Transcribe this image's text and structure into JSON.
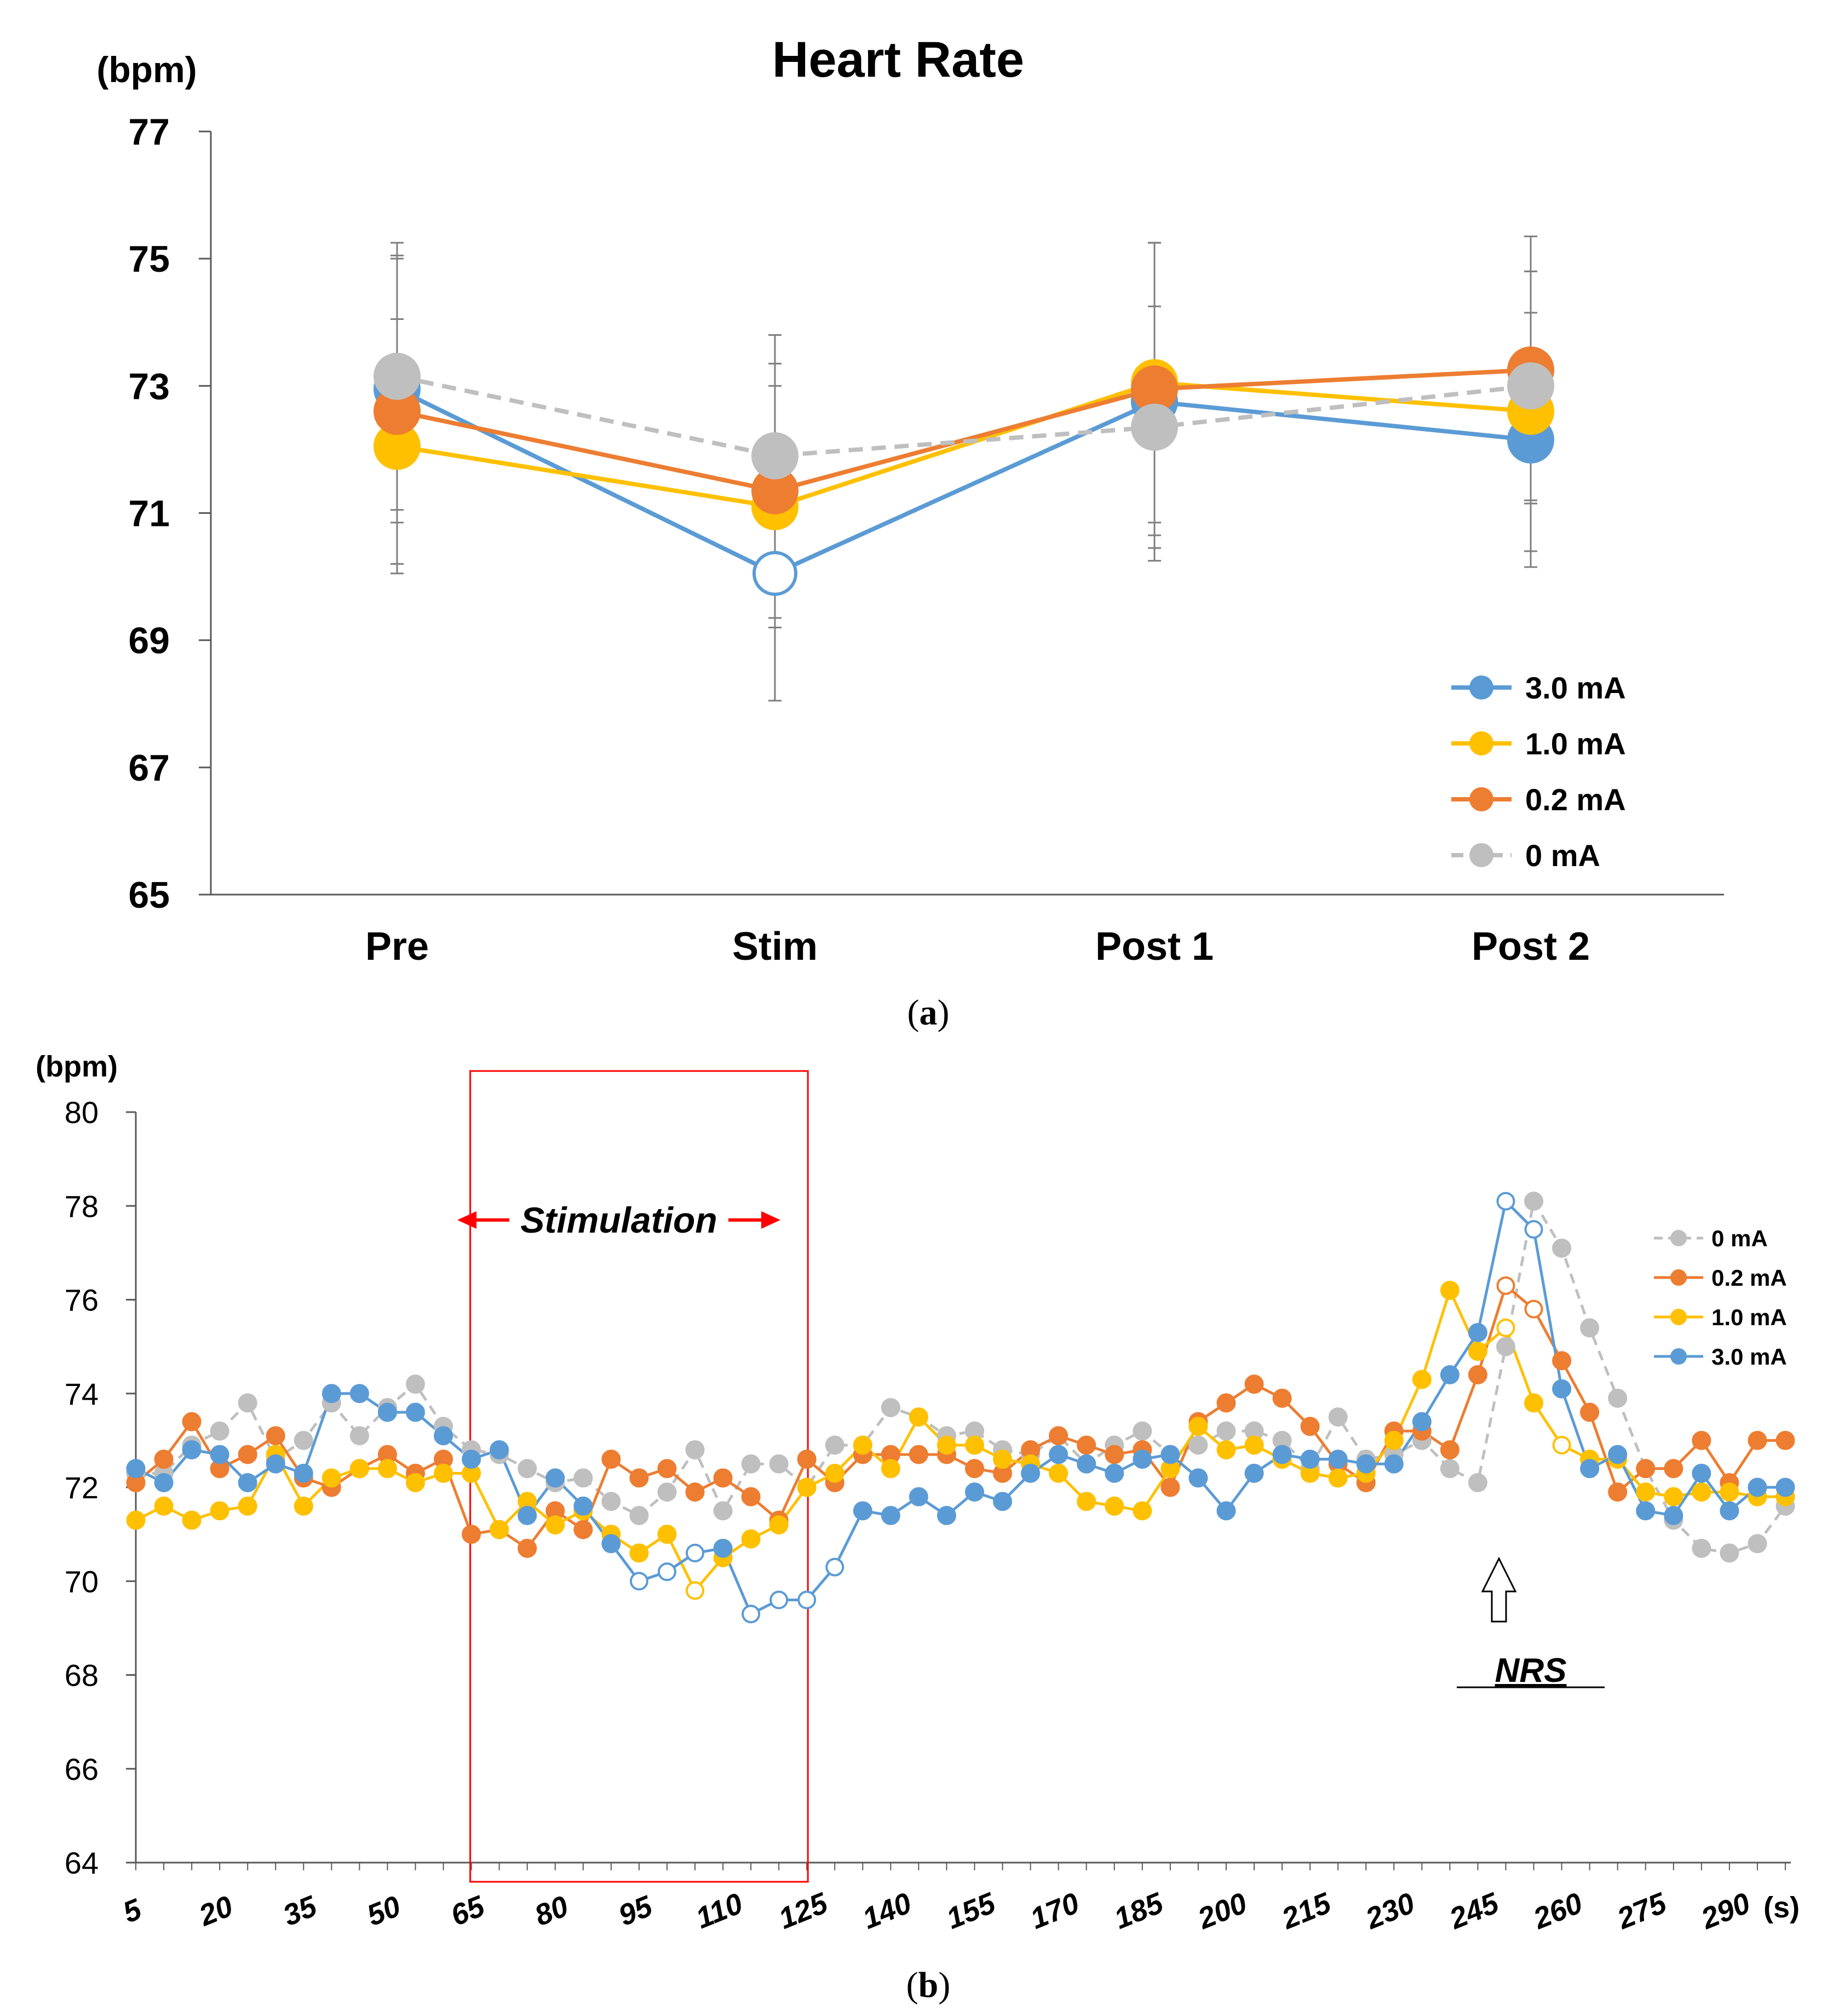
{
  "chart_data": [
    {
      "type": "line",
      "title": "Heart Rate",
      "ylabel": "(bpm)",
      "xlabel": "",
      "panel_label": "a",
      "categories": [
        "Pre",
        "Stim",
        "Post 1",
        "Post 2"
      ],
      "ylim": [
        65,
        77
      ],
      "yticks": [
        65,
        67,
        69,
        71,
        73,
        75,
        77
      ],
      "grid": false,
      "legend_position": "bottom-right",
      "series": [
        {
          "name": "3.0 mA",
          "color": "#5B9BD5",
          "dash": false,
          "values": [
            72.95,
            70.05,
            72.75,
            72.15
          ],
          "hollow": [
            false,
            true,
            false,
            false
          ],
          "error": [
            2.1,
            2.0,
            2.5,
            2.0
          ]
        },
        {
          "name": "1.0 mA",
          "color": "#FFC000",
          "dash": false,
          "values": [
            72.05,
            71.1,
            73.05,
            72.6
          ],
          "hollow": [
            false,
            false,
            false,
            false
          ],
          "error": [
            2.0,
            1.9,
            2.2,
            2.2
          ]
        },
        {
          "name": "0.2 mA",
          "color": "#ED7D31",
          "dash": false,
          "values": [
            72.6,
            71.35,
            72.95,
            73.25
          ],
          "hollow": [
            false,
            false,
            false,
            false
          ],
          "error": [
            2.4,
            2.0,
            2.3,
            2.1
          ]
        },
        {
          "name": "0 mA",
          "color": "#BFBFBF",
          "dash": true,
          "values": [
            73.15,
            71.9,
            72.35,
            73.0
          ],
          "hollow": [
            false,
            false,
            false,
            false
          ],
          "error": [
            2.1,
            1.9,
            1.9,
            1.8
          ]
        }
      ]
    },
    {
      "type": "line",
      "title": "",
      "ylabel": "(bpm)",
      "xlabel": "(s)",
      "panel_label": "b",
      "x": [
        5,
        10,
        15,
        20,
        25,
        30,
        35,
        40,
        45,
        50,
        55,
        60,
        65,
        70,
        75,
        80,
        85,
        90,
        95,
        100,
        105,
        110,
        115,
        120,
        125,
        130,
        135,
        140,
        145,
        150,
        155,
        160,
        165,
        170,
        175,
        180,
        185,
        190,
        195,
        200,
        205,
        210,
        215,
        220,
        225,
        230,
        235,
        240,
        245,
        250,
        255,
        260,
        265,
        270,
        275,
        280,
        285,
        290,
        295,
        300
      ],
      "xticks": [
        5,
        20,
        35,
        50,
        65,
        80,
        95,
        110,
        125,
        140,
        155,
        170,
        185,
        200,
        215,
        230,
        245,
        260,
        275,
        290
      ],
      "xlim": [
        5,
        300
      ],
      "ylim": [
        64,
        80
      ],
      "yticks": [
        64,
        66,
        68,
        70,
        72,
        74,
        76,
        78,
        80
      ],
      "grid": false,
      "legend_position": "right",
      "stimulation_window": {
        "label": "Stimulation",
        "start": 65,
        "end": 125
      },
      "annotation": {
        "label": "NRS",
        "x": 255
      },
      "series": [
        {
          "name": "0 mA",
          "color": "#BFBFBF",
          "dash": true,
          "values": [
            72.3,
            72.3,
            72.9,
            73.2,
            73.8,
            72.6,
            73.0,
            73.8,
            73.1,
            73.7,
            74.2,
            73.3,
            72.8,
            72.7,
            72.4,
            72.1,
            72.2,
            71.7,
            71.4,
            71.9,
            72.8,
            71.5,
            72.5,
            72.5,
            72.0,
            72.9,
            72.9,
            73.7,
            73.5,
            73.1,
            73.2,
            72.8,
            72.7,
            73.1,
            72.5,
            72.9,
            73.2,
            72.7,
            72.9,
            73.2,
            73.2,
            73.0,
            72.4,
            73.5,
            72.6,
            72.7,
            73.0,
            72.4,
            72.1,
            75.0,
            78.1,
            77.1,
            75.4,
            73.9,
            72.4,
            71.3,
            70.7,
            70.6,
            70.8,
            71.6
          ],
          "hollow": [
            false,
            false,
            false,
            false,
            false,
            false,
            false,
            false,
            false,
            false,
            false,
            false,
            false,
            false,
            false,
            false,
            false,
            false,
            false,
            false,
            false,
            false,
            false,
            false,
            false,
            false,
            false,
            false,
            false,
            false,
            false,
            false,
            false,
            false,
            false,
            false,
            false,
            false,
            false,
            false,
            false,
            false,
            false,
            false,
            false,
            false,
            false,
            false,
            false,
            false,
            false,
            false,
            false,
            false,
            false,
            false,
            false,
            false,
            false,
            false
          ]
        },
        {
          "name": "0.2 mA",
          "color": "#ED7D31",
          "dash": false,
          "values": [
            72.1,
            72.6,
            73.4,
            72.4,
            72.7,
            73.1,
            72.2,
            72.0,
            72.4,
            72.7,
            72.3,
            72.6,
            71.0,
            71.1,
            70.7,
            71.5,
            71.1,
            72.6,
            72.2,
            72.4,
            71.9,
            72.2,
            71.8,
            71.3,
            72.6,
            72.1,
            72.7,
            72.7,
            72.7,
            72.7,
            72.4,
            72.3,
            72.8,
            73.1,
            72.9,
            72.7,
            72.8,
            72.0,
            73.4,
            73.8,
            74.2,
            73.9,
            73.3,
            72.5,
            72.1,
            73.2,
            73.2,
            72.8,
            74.4,
            76.3,
            75.8,
            74.7,
            73.6,
            71.9,
            72.4,
            72.4,
            73.0,
            72.1,
            73.0,
            73.0
          ],
          "hollow": [
            false,
            false,
            false,
            false,
            false,
            false,
            false,
            false,
            false,
            false,
            false,
            false,
            false,
            false,
            false,
            false,
            false,
            false,
            false,
            false,
            false,
            false,
            false,
            false,
            false,
            false,
            false,
            false,
            false,
            false,
            false,
            false,
            false,
            false,
            false,
            false,
            false,
            false,
            false,
            false,
            false,
            false,
            false,
            false,
            false,
            false,
            false,
            false,
            false,
            true,
            true,
            false,
            false,
            false,
            false,
            false,
            false,
            false,
            false,
            false
          ]
        },
        {
          "name": "1.0 mA",
          "color": "#FFC000",
          "dash": false,
          "values": [
            71.3,
            71.6,
            71.3,
            71.5,
            71.6,
            72.7,
            71.6,
            72.2,
            72.4,
            72.4,
            72.1,
            72.3,
            72.3,
            71.1,
            71.7,
            71.2,
            71.5,
            71.0,
            70.6,
            71.0,
            69.8,
            70.5,
            70.9,
            71.2,
            72.0,
            72.3,
            72.9,
            72.4,
            73.5,
            72.9,
            72.9,
            72.6,
            72.5,
            72.3,
            71.7,
            71.6,
            71.5,
            72.4,
            73.3,
            72.8,
            72.9,
            72.6,
            72.3,
            72.2,
            72.3,
            73.0,
            74.3,
            76.2,
            74.9,
            75.4,
            73.8,
            72.9,
            72.6,
            72.6,
            71.9,
            71.8,
            71.9,
            71.9,
            71.8,
            71.8
          ],
          "hollow": [
            false,
            false,
            false,
            false,
            false,
            false,
            false,
            false,
            false,
            false,
            false,
            false,
            false,
            false,
            false,
            false,
            false,
            false,
            false,
            false,
            true,
            false,
            false,
            false,
            false,
            false,
            false,
            false,
            false,
            false,
            false,
            false,
            false,
            false,
            false,
            false,
            false,
            false,
            false,
            false,
            false,
            false,
            false,
            false,
            false,
            false,
            false,
            false,
            false,
            true,
            false,
            true,
            false,
            false,
            false,
            false,
            false,
            false,
            false,
            false
          ]
        },
        {
          "name": "3.0 mA",
          "color": "#5B9BD5",
          "dash": false,
          "values": [
            72.4,
            72.1,
            72.8,
            72.7,
            72.1,
            72.5,
            72.3,
            74.0,
            74.0,
            73.6,
            73.6,
            73.1,
            72.6,
            72.8,
            71.4,
            72.2,
            71.6,
            70.8,
            70.0,
            70.2,
            70.6,
            70.7,
            69.3,
            69.6,
            69.6,
            70.3,
            71.5,
            71.4,
            71.8,
            71.4,
            71.9,
            71.7,
            72.3,
            72.7,
            72.5,
            72.3,
            72.6,
            72.7,
            72.2,
            71.5,
            72.3,
            72.7,
            72.6,
            72.6,
            72.5,
            72.5,
            73.4,
            74.4,
            75.3,
            78.1,
            77.5,
            74.1,
            72.4,
            72.7,
            71.5,
            71.4,
            72.3,
            71.5,
            72.0,
            72.0
          ],
          "hollow": [
            false,
            false,
            false,
            false,
            false,
            false,
            false,
            false,
            false,
            false,
            false,
            false,
            false,
            false,
            false,
            false,
            false,
            false,
            true,
            true,
            true,
            false,
            true,
            true,
            true,
            true,
            false,
            false,
            false,
            false,
            false,
            false,
            false,
            false,
            false,
            false,
            false,
            false,
            false,
            false,
            false,
            false,
            false,
            false,
            false,
            false,
            false,
            false,
            false,
            true,
            true,
            false,
            false,
            false,
            false,
            false,
            false,
            false,
            false,
            false
          ]
        }
      ]
    }
  ]
}
